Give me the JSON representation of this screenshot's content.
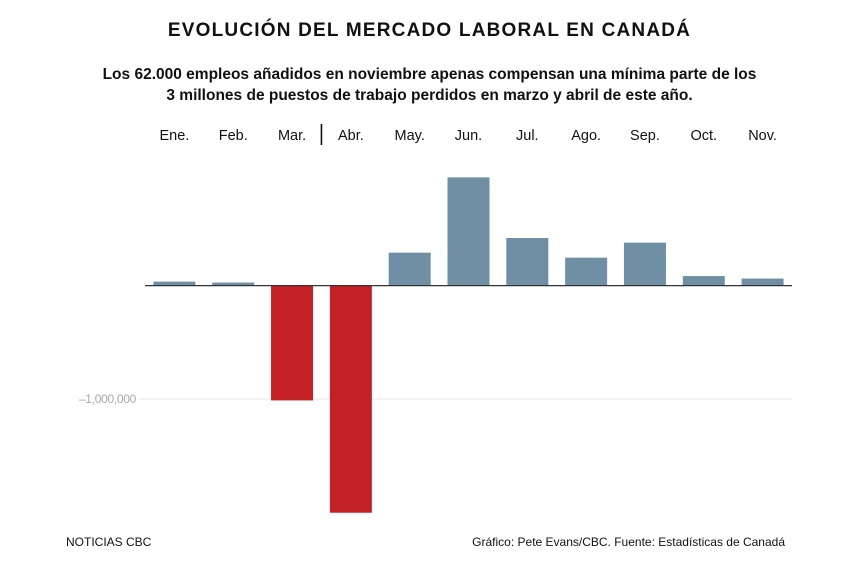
{
  "title": "EVOLUCIÓN DEL MERCADO LABORAL EN CANADÁ",
  "subtitle_line1": "Los 62.000 empleos añadidos en noviembre apenas compensan una mínima parte de los",
  "subtitle_line2": "3 millones de puestos de trabajo perdidos en marzo y abril de este año.",
  "footer": {
    "source_left": "NOTICIAS CBC",
    "credit_right": "Gráfico: Pete Evans/CBC. Fuente: Estadísticas de Canadá"
  },
  "colors": {
    "positive": "#6f8fa5",
    "negative": "#c42127",
    "axis": "#333333",
    "gridline": "#e6e6e6",
    "tick_label": "#a8a8a8"
  },
  "chart_data": {
    "type": "bar",
    "categories": [
      "Ene.",
      "Feb.",
      "Mar.",
      "Abr.",
      "May.",
      "Jun.",
      "Jul.",
      "Ago.",
      "Sep.",
      "Oct.",
      "Nov."
    ],
    "values": [
      35000,
      27000,
      -1011000,
      -2000000,
      290000,
      953000,
      419000,
      246000,
      378000,
      84000,
      62000
    ],
    "ylim": [
      -2020000,
      1150000
    ],
    "yticks": [
      -1000000
    ],
    "ytick_labels": [
      "–1,000,000"
    ],
    "gridlines": true,
    "category_labels_position": "top",
    "divider_between": [
      "Mar.",
      "Abr."
    ]
  }
}
